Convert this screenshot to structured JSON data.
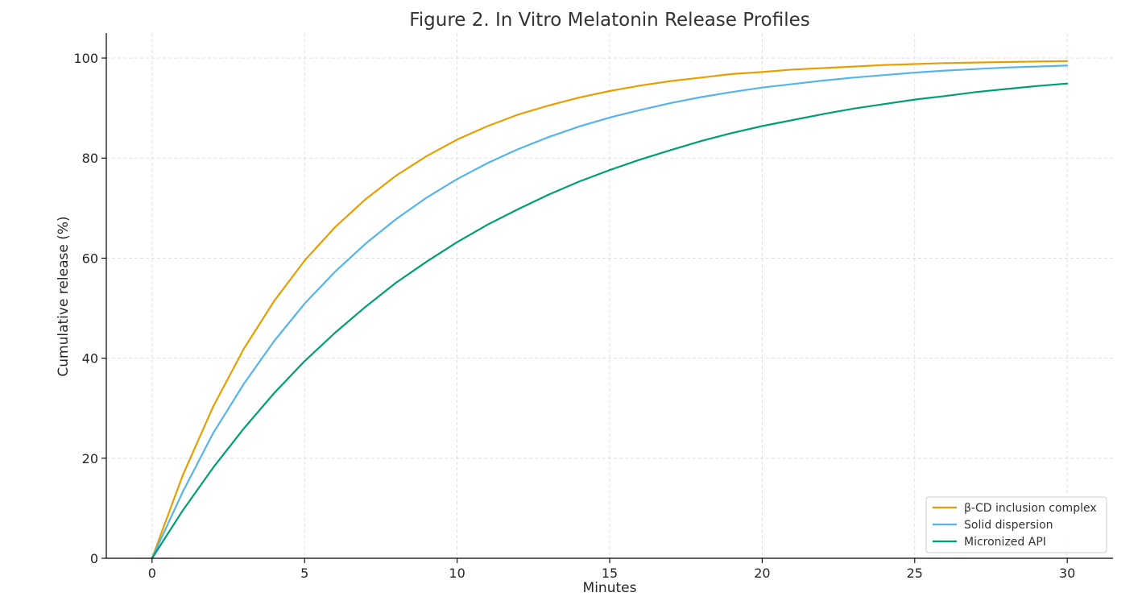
{
  "chart_data": {
    "type": "line",
    "title": "Figure 2. In Vitro Melatonin Release Profiles",
    "xlabel": "Minutes",
    "ylabel": "Cumulative release (%)",
    "xlim": [
      -1.5,
      31.5
    ],
    "ylim": [
      0,
      105
    ],
    "xticks": [
      0,
      5,
      10,
      15,
      20,
      25,
      30
    ],
    "yticks": [
      0,
      20,
      40,
      60,
      80,
      100
    ],
    "grid": true,
    "legend_position": "lower-right",
    "x": [
      0,
      1,
      2,
      3,
      4,
      5,
      6,
      7,
      8,
      9,
      10,
      11,
      12,
      13,
      14,
      15,
      16,
      17,
      18,
      19,
      20,
      21,
      22,
      23,
      24,
      25,
      26,
      27,
      28,
      29,
      30
    ],
    "series": [
      {
        "name": "β-CD inclusion complex",
        "color": "#E69F00",
        "values": [
          0,
          16.5,
          30.3,
          41.8,
          51.4,
          59.5,
          66.2,
          71.8,
          76.5,
          80.4,
          83.7,
          86.4,
          88.7,
          90.5,
          92.1,
          93.4,
          94.5,
          95.4,
          96.1,
          96.8,
          97.2,
          97.7,
          98.0,
          98.3,
          98.6,
          98.8,
          99.0,
          99.1,
          99.2,
          99.3,
          99.4
        ]
      },
      {
        "name": "Solid dispersion",
        "color": "#56B4E9",
        "values": [
          0,
          13.2,
          25.0,
          34.8,
          43.4,
          50.9,
          57.3,
          62.9,
          67.8,
          72.1,
          75.8,
          79.0,
          81.8,
          84.2,
          86.3,
          88.1,
          89.6,
          91.0,
          92.2,
          93.2,
          94.1,
          94.8,
          95.5,
          96.1,
          96.6,
          97.1,
          97.5,
          97.8,
          98.1,
          98.3,
          98.5
        ]
      },
      {
        "name": "Micronized API",
        "color": "#009E73",
        "values": [
          0,
          9.5,
          18.1,
          25.9,
          33.0,
          39.4,
          45.1,
          50.3,
          55.1,
          59.3,
          63.2,
          66.7,
          69.8,
          72.7,
          75.3,
          77.6,
          79.7,
          81.6,
          83.4,
          85.0,
          86.4,
          87.6,
          88.8,
          89.9,
          90.8,
          91.7,
          92.4,
          93.2,
          93.8,
          94.4,
          94.9
        ]
      }
    ]
  }
}
